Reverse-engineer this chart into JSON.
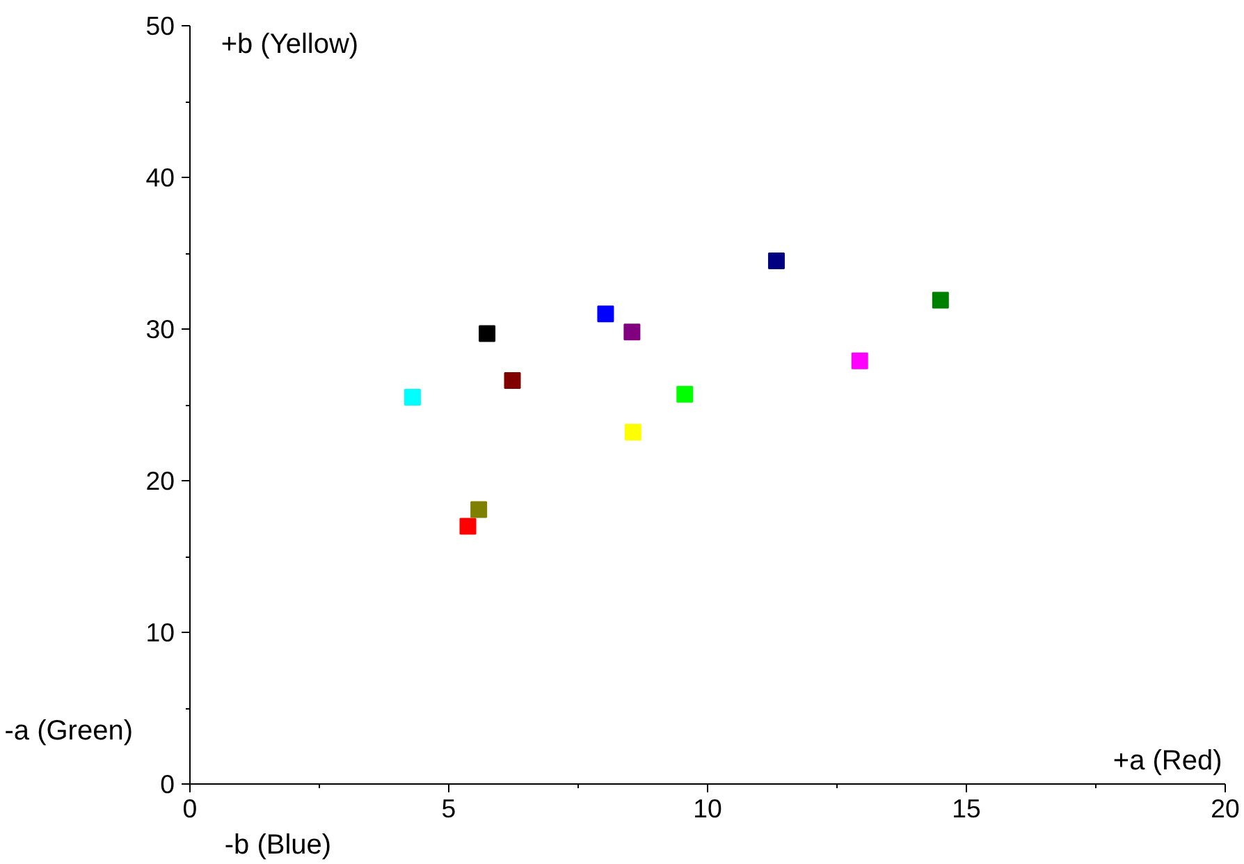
{
  "chart_data": {
    "type": "scatter",
    "marker": "square",
    "legend": false,
    "grid": false,
    "x": [
      4.3,
      5.37,
      5.58,
      5.74,
      6.23,
      8.03,
      8.56,
      8.54,
      9.56,
      11.33,
      12.94,
      14.5
    ],
    "values": [
      25.5,
      17.0,
      18.1,
      29.7,
      26.6,
      31.0,
      23.2,
      29.8,
      25.7,
      34.5,
      27.9,
      31.9
    ],
    "colors": [
      "#00ffff",
      "#ff0000",
      "#808000",
      "#000000",
      "#800000",
      "#0000ff",
      "#ffff00",
      "#800080",
      "#00ff00",
      "#000080",
      "#ff00ff",
      "#008000"
    ],
    "xlim": [
      0,
      20
    ],
    "xticks": [
      0,
      5,
      10,
      15,
      20
    ],
    "ylim": [
      0,
      50
    ],
    "yticks": [
      0,
      10,
      20,
      30,
      40,
      50
    ],
    "annotations": [
      "+b (Yellow)",
      "-a (Green)",
      "+a (Red)",
      "-b (Blue)"
    ]
  }
}
